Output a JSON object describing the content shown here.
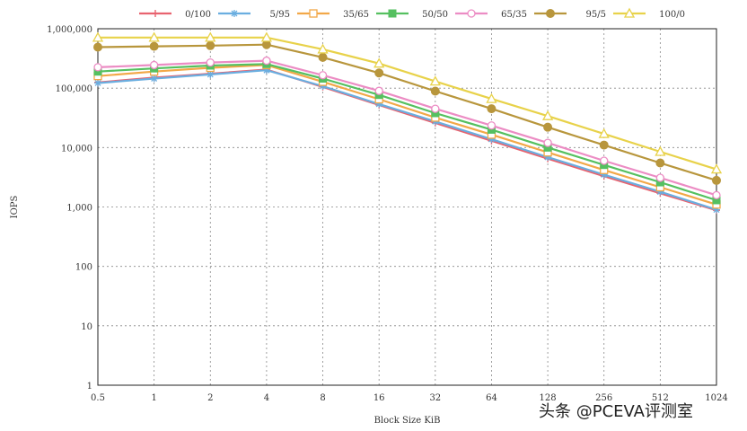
{
  "chart_data": {
    "type": "line",
    "ylabel": "IOPS",
    "xlabel": "Block Size KiB",
    "y_scale": "log",
    "ylim": [
      1,
      1000000
    ],
    "y_ticks": [
      "1",
      "10",
      "100",
      "1,000",
      "10,000",
      "100,000",
      "1,000,000"
    ],
    "categories": [
      "0.5",
      "1",
      "2",
      "4",
      "8",
      "16",
      "32",
      "64",
      "128",
      "256",
      "512",
      "1024"
    ],
    "grid": true,
    "legend_position": "top",
    "series": [
      {
        "name": "0/100",
        "color": "#e8636f",
        "marker": "plus",
        "values": [
          125000,
          150000,
          175000,
          205000,
          105000,
          52000,
          26000,
          13000,
          6500,
          3300,
          1700,
          880
        ]
      },
      {
        "name": "5/95",
        "color": "#6aaee0",
        "marker": "star",
        "values": [
          122000,
          145000,
          170000,
          200000,
          108000,
          54000,
          27500,
          13800,
          6900,
          3500,
          1800,
          900
        ]
      },
      {
        "name": "35/65",
        "color": "#f2a848",
        "marker": "square",
        "values": [
          160000,
          190000,
          220000,
          245000,
          128000,
          65000,
          32000,
          16500,
          8300,
          4200,
          2150,
          1100
        ]
      },
      {
        "name": "50/50",
        "color": "#55c060",
        "marker": "filled-square",
        "values": [
          190000,
          215000,
          240000,
          255000,
          145000,
          77000,
          38000,
          20000,
          10000,
          5100,
          2600,
          1300
        ]
      },
      {
        "name": "65/35",
        "color": "#ec8cc4",
        "marker": "circle",
        "values": [
          225000,
          245000,
          270000,
          290000,
          165000,
          90000,
          45000,
          23500,
          12000,
          6000,
          3100,
          1580
        ]
      },
      {
        "name": "95/5",
        "color": "#b8963c",
        "marker": "filled-circle",
        "values": [
          490000,
          505000,
          520000,
          540000,
          330000,
          180000,
          89000,
          45000,
          22000,
          11000,
          5500,
          2800
        ]
      },
      {
        "name": "100/0",
        "color": "#e8d24a",
        "marker": "triangle",
        "values": [
          710000,
          710000,
          710000,
          710000,
          450000,
          260000,
          130000,
          66000,
          34000,
          17000,
          8500,
          4300
        ]
      }
    ]
  },
  "watermark": "头条 @PCEVA评测室"
}
